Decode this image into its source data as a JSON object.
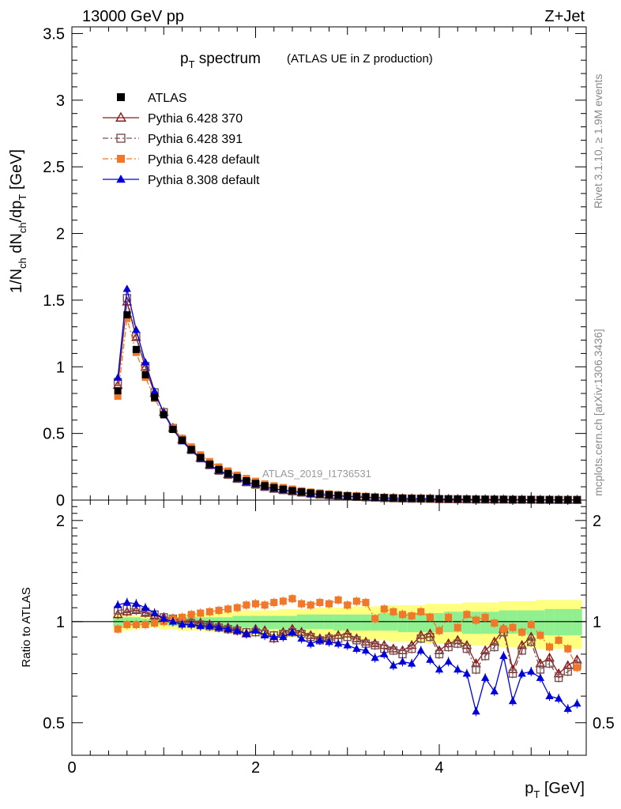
{
  "header": {
    "energy": "13000 GeV pp",
    "process": "Z+Jet"
  },
  "side_labels": {
    "rivet": "Rivet 3.1.10, ≥ 1.9M events",
    "mcplots": "mcplots.cern.ch [arXiv:1306.3436]"
  },
  "chart_data": {
    "type": "line",
    "title_main": "p",
    "title_sub": "T",
    "title_rest": " spectrum",
    "title_small": "(ATLAS UE in Z production)",
    "watermark": "ATLAS_2019_I1736531",
    "xlabel": {
      "main": "p",
      "sub": "T",
      "rest": " [GeV]"
    },
    "ylabel": {
      "p1": "1/N",
      "s1": "ch",
      "p2": " dN",
      "s2": "ch",
      "p3": "/dp",
      "s3": "T",
      "p4": " [GeV]"
    },
    "ratio_ylabel": "Ratio to ATLAS",
    "xlim": [
      0,
      5.6
    ],
    "ylim": [
      0,
      3.55
    ],
    "ratio_ylim": [
      0.4,
      2.3
    ],
    "xticks": [
      "0",
      "2",
      "4"
    ],
    "yticks": [
      "0",
      "0.5",
      "1",
      "1.5",
      "2",
      "2.5",
      "3",
      "3.5"
    ],
    "ratio_yticks": [
      "0.5",
      "1",
      "2"
    ],
    "x": [
      0.5,
      0.6,
      0.7,
      0.8,
      0.9,
      1.0,
      1.1,
      1.2,
      1.3,
      1.4,
      1.5,
      1.6,
      1.7,
      1.8,
      1.9,
      2.0,
      2.1,
      2.2,
      2.3,
      2.4,
      2.5,
      2.6,
      2.7,
      2.8,
      2.9,
      3.0,
      3.1,
      3.2,
      3.3,
      3.4,
      3.5,
      3.6,
      3.7,
      3.8,
      3.9,
      4.0,
      4.1,
      4.2,
      4.3,
      4.4,
      4.5,
      4.6,
      4.7,
      4.8,
      4.9,
      5.0,
      5.1,
      5.2,
      5.3,
      5.4,
      5.5
    ],
    "atlas_values": [
      0.82,
      1.39,
      1.13,
      0.94,
      0.77,
      0.64,
      0.53,
      0.45,
      0.38,
      0.32,
      0.27,
      0.23,
      0.2,
      0.17,
      0.145,
      0.125,
      0.108,
      0.094,
      0.082,
      0.071,
      0.062,
      0.054,
      0.047,
      0.041,
      0.036,
      0.032,
      0.028,
      0.025,
      0.022,
      0.019,
      0.017,
      0.015,
      0.013,
      0.012,
      0.011,
      0.0095,
      0.0085,
      0.0075,
      0.0068,
      0.006,
      0.0054,
      0.0048,
      0.0043,
      0.0039,
      0.0035,
      0.0031,
      0.0028,
      0.0025,
      0.0023,
      0.0021,
      0.0019
    ],
    "band_outer": [
      [
        0.93,
        1.06
      ],
      [
        0.94,
        1.05
      ],
      [
        0.95,
        1.04
      ],
      [
        0.96,
        1.04
      ],
      [
        0.96,
        1.04
      ],
      [
        0.95,
        1.04
      ],
      [
        0.95,
        1.05
      ],
      [
        0.94,
        1.05
      ],
      [
        0.94,
        1.06
      ],
      [
        0.94,
        1.06
      ],
      [
        0.93,
        1.06
      ],
      [
        0.93,
        1.07
      ],
      [
        0.92,
        1.07
      ],
      [
        0.92,
        1.07
      ],
      [
        0.92,
        1.08
      ],
      [
        0.91,
        1.08
      ],
      [
        0.91,
        1.08
      ],
      [
        0.91,
        1.08
      ],
      [
        0.9,
        1.09
      ],
      [
        0.9,
        1.09
      ],
      [
        0.9,
        1.09
      ],
      [
        0.9,
        1.09
      ],
      [
        0.89,
        1.1
      ],
      [
        0.89,
        1.1
      ],
      [
        0.89,
        1.1
      ],
      [
        0.89,
        1.1
      ],
      [
        0.88,
        1.11
      ],
      [
        0.88,
        1.11
      ],
      [
        0.88,
        1.11
      ],
      [
        0.88,
        1.11
      ],
      [
        0.87,
        1.12
      ],
      [
        0.87,
        1.12
      ],
      [
        0.87,
        1.12
      ],
      [
        0.87,
        1.12
      ],
      [
        0.86,
        1.13
      ],
      [
        0.86,
        1.13
      ],
      [
        0.86,
        1.13
      ],
      [
        0.86,
        1.13
      ],
      [
        0.85,
        1.14
      ],
      [
        0.85,
        1.14
      ],
      [
        0.85,
        1.14
      ],
      [
        0.85,
        1.14
      ],
      [
        0.84,
        1.15
      ],
      [
        0.84,
        1.15
      ],
      [
        0.84,
        1.15
      ],
      [
        0.84,
        1.15
      ],
      [
        0.83,
        1.16
      ],
      [
        0.83,
        1.16
      ],
      [
        0.83,
        1.16
      ],
      [
        0.83,
        1.16
      ],
      [
        0.83,
        1.16
      ]
    ],
    "band_inner": [
      [
        0.97,
        1.03
      ],
      [
        0.97,
        1.03
      ],
      [
        0.97,
        1.03
      ],
      [
        0.98,
        1.02
      ],
      [
        0.98,
        1.02
      ],
      [
        0.98,
        1.02
      ],
      [
        0.97,
        1.02
      ],
      [
        0.97,
        1.02
      ],
      [
        0.97,
        1.03
      ],
      [
        0.97,
        1.03
      ],
      [
        0.96,
        1.03
      ],
      [
        0.96,
        1.03
      ],
      [
        0.96,
        1.03
      ],
      [
        0.96,
        1.04
      ],
      [
        0.96,
        1.04
      ],
      [
        0.95,
        1.04
      ],
      [
        0.95,
        1.04
      ],
      [
        0.95,
        1.04
      ],
      [
        0.95,
        1.04
      ],
      [
        0.95,
        1.04
      ],
      [
        0.95,
        1.05
      ],
      [
        0.95,
        1.05
      ],
      [
        0.95,
        1.05
      ],
      [
        0.95,
        1.05
      ],
      [
        0.94,
        1.05
      ],
      [
        0.94,
        1.05
      ],
      [
        0.94,
        1.05
      ],
      [
        0.94,
        1.05
      ],
      [
        0.94,
        1.05
      ],
      [
        0.94,
        1.06
      ],
      [
        0.94,
        1.06
      ],
      [
        0.93,
        1.06
      ],
      [
        0.93,
        1.06
      ],
      [
        0.93,
        1.06
      ],
      [
        0.93,
        1.06
      ],
      [
        0.93,
        1.06
      ],
      [
        0.93,
        1.07
      ],
      [
        0.93,
        1.07
      ],
      [
        0.92,
        1.07
      ],
      [
        0.92,
        1.07
      ],
      [
        0.92,
        1.07
      ],
      [
        0.92,
        1.07
      ],
      [
        0.92,
        1.08
      ],
      [
        0.92,
        1.08
      ],
      [
        0.92,
        1.08
      ],
      [
        0.91,
        1.08
      ],
      [
        0.91,
        1.08
      ],
      [
        0.91,
        1.09
      ],
      [
        0.91,
        1.09
      ],
      [
        0.91,
        1.09
      ],
      [
        0.91,
        1.09
      ]
    ],
    "series": [
      {
        "name": "ATLAS",
        "color": "#000000",
        "marker": "square-filled",
        "line": "none"
      },
      {
        "name": "Pythia 6.428 370",
        "color": "#8b1a1a",
        "marker": "triangle-open",
        "line": "solid",
        "ratio": [
          1.05,
          1.07,
          1.08,
          1.06,
          1.04,
          1.03,
          1.02,
          1.01,
          1.0,
          0.99,
          0.98,
          0.97,
          0.96,
          0.95,
          0.92,
          0.95,
          0.94,
          0.89,
          0.93,
          0.95,
          0.93,
          0.91,
          0.89,
          0.9,
          0.91,
          0.92,
          0.89,
          0.87,
          0.86,
          0.85,
          0.83,
          0.82,
          0.85,
          0.91,
          0.92,
          0.82,
          0.86,
          0.88,
          0.85,
          0.75,
          0.82,
          0.87,
          0.95,
          0.72,
          0.85,
          0.9,
          0.75,
          0.78,
          0.7,
          0.74,
          0.77
        ]
      },
      {
        "name": "Pythia 6.428 391",
        "color": "#7a5050",
        "marker": "square-open",
        "line": "dashdot",
        "ratio": [
          1.08,
          1.09,
          1.09,
          1.07,
          1.05,
          1.03,
          1.02,
          1.0,
          0.99,
          0.98,
          0.97,
          0.96,
          0.95,
          0.94,
          0.93,
          0.93,
          0.92,
          0.91,
          0.92,
          0.93,
          0.92,
          0.9,
          0.88,
          0.89,
          0.89,
          0.9,
          0.88,
          0.86,
          0.85,
          0.83,
          0.82,
          0.8,
          0.83,
          0.89,
          0.9,
          0.8,
          0.84,
          0.86,
          0.83,
          0.72,
          0.79,
          0.84,
          0.93,
          0.7,
          0.82,
          0.87,
          0.72,
          0.75,
          0.68,
          0.71,
          0.74
        ]
      },
      {
        "name": "Pythia 6.428 default",
        "color": "#f07828",
        "marker": "square-filled",
        "line": "dashdot",
        "ratio": [
          0.95,
          0.98,
          0.98,
          0.98,
          0.99,
          1.0,
          1.02,
          1.03,
          1.05,
          1.06,
          1.07,
          1.08,
          1.09,
          1.1,
          1.12,
          1.13,
          1.12,
          1.14,
          1.15,
          1.17,
          1.13,
          1.12,
          1.14,
          1.13,
          1.16,
          1.12,
          1.15,
          1.14,
          1.02,
          1.09,
          1.07,
          1.05,
          1.04,
          1.07,
          1.03,
          0.94,
          1.03,
          0.96,
          1.05,
          1.01,
          1.03,
          0.99,
          0.95,
          0.96,
          0.93,
          0.98,
          0.91,
          0.84,
          0.88,
          0.83,
          0.73
        ]
      },
      {
        "name": "Pythia 8.308 default",
        "color": "#0000dd",
        "marker": "triangle-filled",
        "line": "solid",
        "ratio": [
          1.12,
          1.14,
          1.13,
          1.1,
          1.06,
          1.02,
          1.0,
          0.98,
          0.98,
          0.97,
          0.97,
          0.96,
          0.95,
          0.94,
          0.92,
          0.94,
          0.91,
          0.9,
          0.9,
          0.93,
          0.89,
          0.86,
          0.88,
          0.87,
          0.86,
          0.85,
          0.83,
          0.82,
          0.78,
          0.8,
          0.74,
          0.76,
          0.75,
          0.82,
          0.77,
          0.72,
          0.76,
          0.72,
          0.7,
          0.54,
          0.68,
          0.62,
          0.79,
          0.58,
          0.7,
          0.71,
          0.68,
          0.6,
          0.59,
          0.55,
          0.57
        ]
      }
    ],
    "legend_placement": "top-left",
    "grid": false
  }
}
